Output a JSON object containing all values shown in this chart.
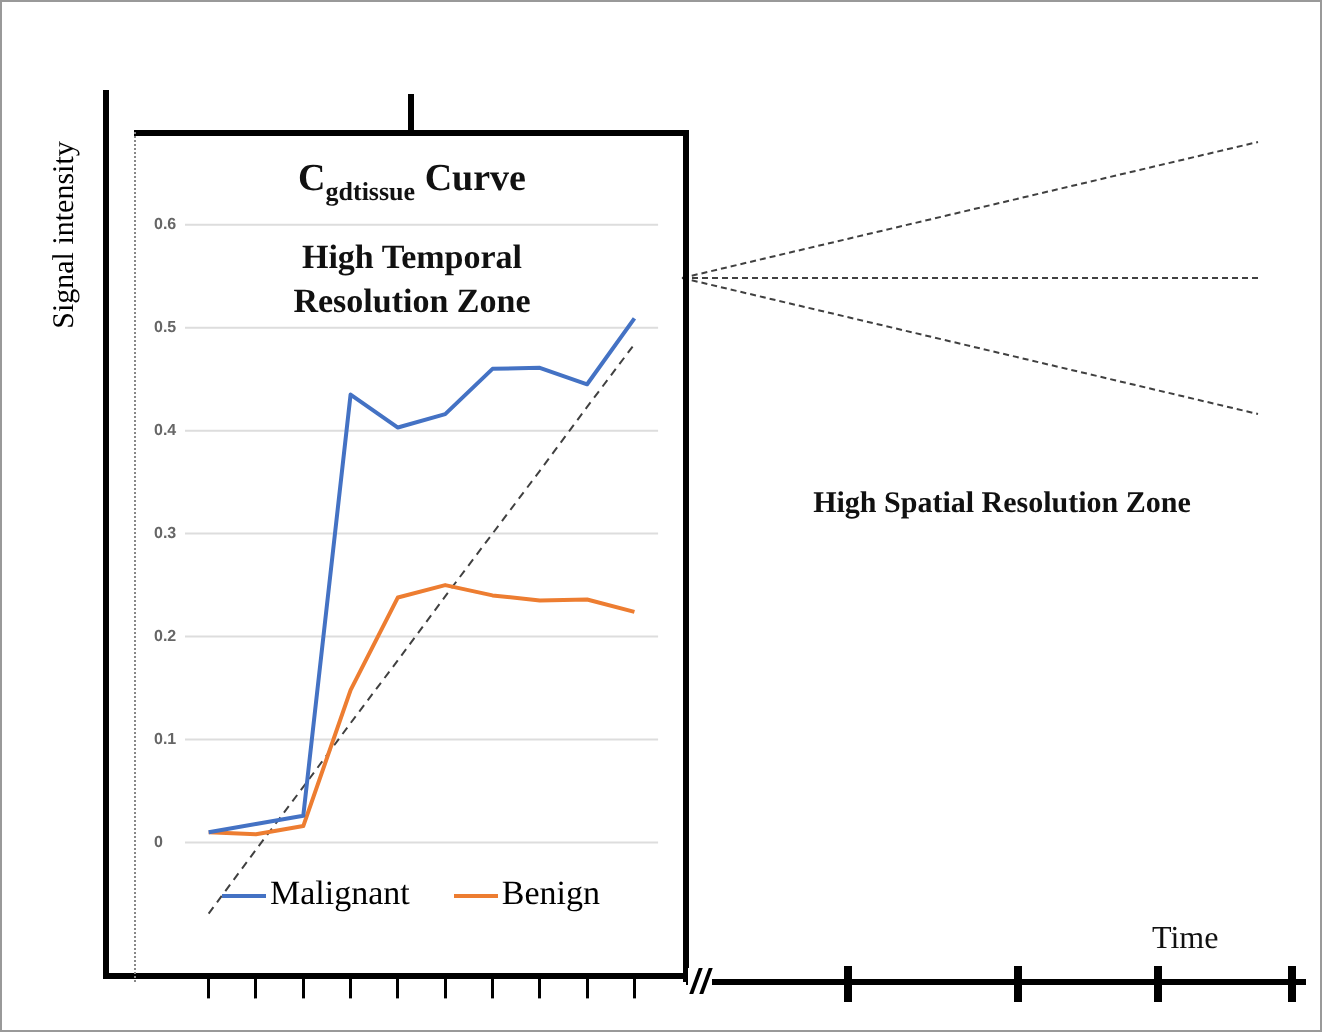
{
  "chart_data": {
    "type": "line",
    "title": "C$_{gdtissue}$ Curve",
    "ylabel": "Signal intensity",
    "annotations": [
      "High Temporal Resolution Zone",
      "High Spatial Resolution Zone",
      "Time"
    ],
    "categories": [
      null,
      null,
      null,
      null,
      null,
      null,
      null,
      null,
      null,
      null
    ],
    "series": [
      {
        "name": "Malignant",
        "color": "#4472c4",
        "values": [
          0.01,
          0.018,
          0.026,
          0.435,
          0.403,
          0.416,
          0.46,
          0.461,
          0.445,
          0.509
        ]
      },
      {
        "name": "Benign",
        "color": "#ed7d31",
        "values": [
          0.01,
          0.008,
          0.016,
          0.148,
          0.238,
          0.25,
          0.24,
          0.235,
          0.236,
          0.224
        ]
      },
      {
        "color": "#404040",
        "line_style": "dashed",
        "values": [
          -0.069,
          -0.007,
          0.054,
          0.116,
          0.177,
          0.239,
          0.3,
          0.361,
          0.423,
          0.484
        ]
      }
    ],
    "ylim": [
      -0.13,
      0.69
    ],
    "yticks": [
      0,
      0.1,
      0.2,
      0.3,
      0.4,
      0.5,
      0.6
    ],
    "tick_labels": "y",
    "grid": "y",
    "legend": "bottom",
    "marker": "none",
    "line_style": "solid"
  }
}
